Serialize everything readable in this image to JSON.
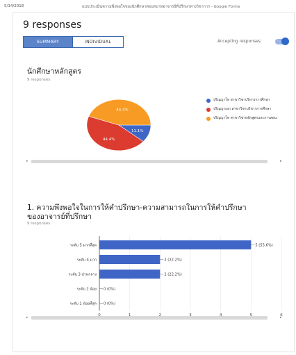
{
  "topbar": {
    "date": "5/14/2018",
    "page_title": "แบบประเมินความพึงพอใจของนักศึกษาต่อบทบาทอาจารย์ที่ปรึกษาทางวิชาการ - Google Forms"
  },
  "header": {
    "responses_title": "9 responses",
    "tabs": [
      {
        "label": "SUMMARY"
      },
      {
        "label": "INDIVIDUAL"
      }
    ],
    "accepting_label": "Accepting responses"
  },
  "colors": {
    "blue": "#3f66c6",
    "red": "#dc3b2f",
    "orange": "#f79b24",
    "bar": "#3f66c6"
  },
  "card1": {
    "title": "นักศึกษาหลักสูตร",
    "subtitle": "9 responses",
    "legend": [
      {
        "label": "ปริญญาโท สาขาวิชาบริหารการศึกษา",
        "color": "#3f66c6"
      },
      {
        "label": "ปริญญาเอก สาขาวิชาบริหารการศึกษา",
        "color": "#dc3b2f"
      },
      {
        "label": "ปริญญาโท สาขาวิชาหลักสูตรและการสอน",
        "color": "#f79b24"
      }
    ]
  },
  "card2": {
    "title_line1": "1. ความพึงพอใจในการให้คำปรึกษา-ความสามารถในการให้คำปรึกษา",
    "title_line2": "ของอาจารย์ที่ปรึกษา",
    "subtitle": "9 responses"
  },
  "chart_data": [
    {
      "type": "pie",
      "slices": [
        {
          "label": "ปริญญาโท สาขาวิชาบริหารการศึกษา",
          "value": 11.1,
          "display": "11.1%",
          "color": "#3f66c6"
        },
        {
          "label": "ปริญญาเอก สาขาวิชาบริหารการศึกษา",
          "value": 44.4,
          "display": "44.4%",
          "color": "#dc3b2f"
        },
        {
          "label": "ปริญญาโท สาขาวิชาหลักสูตรและการสอน",
          "value": 44.4,
          "display": "44.4%",
          "color": "#f79b24"
        }
      ]
    },
    {
      "type": "bar",
      "orientation": "horizontal",
      "categories": [
        "ระดับ 5 มากที่สุด",
        "ระดับ 4 มาก",
        "ระดับ 3 ปานกลาง",
        "ระดับ 2 น้อย",
        "ระดับ 1 น้อยที่สุด"
      ],
      "values": [
        5,
        2,
        2,
        0,
        0
      ],
      "data_labels": [
        "5 (55.6%)",
        "2 (22.2%)",
        "2 (22.2%)",
        "0 (0%)",
        "0 (0%)"
      ],
      "xticks": [
        "0",
        "1",
        "2",
        "3",
        "4",
        "5",
        "6"
      ],
      "xlim": [
        0,
        6
      ]
    }
  ]
}
